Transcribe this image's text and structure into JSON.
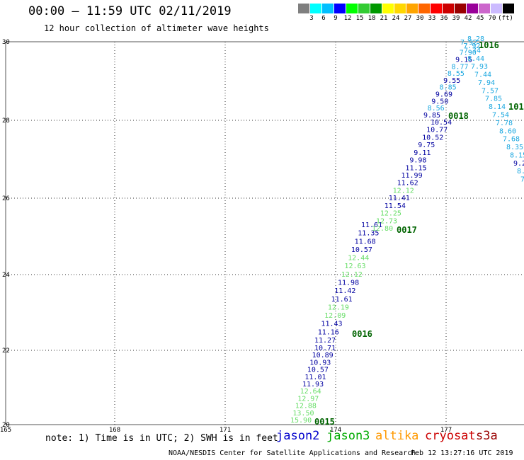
{
  "header": {
    "title": "00:00 – 11:59 UTC 02/11/2019",
    "subtitle": "12 hour collection of altimeter wave heights"
  },
  "legend": {
    "unit": "(ft)",
    "colors": [
      "#7f7f7f",
      "#00ffff",
      "#00bfff",
      "#0000ff",
      "#00ff00",
      "#33cc33",
      "#009900",
      "#ffff00",
      "#ffd700",
      "#ffa500",
      "#ff6600",
      "#ff0000",
      "#cc0000",
      "#990000",
      "#990099",
      "#cc66cc",
      "#ccbbff",
      "#000000"
    ],
    "labels": [
      "3",
      "6",
      "9",
      "12",
      "15",
      "18",
      "21",
      "24",
      "27",
      "30",
      "33",
      "36",
      "39",
      "42",
      "45",
      "70"
    ]
  },
  "axes": {
    "lon_labels": [
      "165",
      "168",
      "171",
      "174",
      "177"
    ],
    "lat_labels": [
      "30",
      "28",
      "26",
      "24",
      "22",
      "20"
    ]
  },
  "tracks": [
    {
      "label": "0015",
      "color": "#006400",
      "values": [
        {
          "v": "15.90",
          "c": "#66dd66"
        },
        {
          "v": "13.50",
          "c": "#66dd66"
        },
        {
          "v": "12.88",
          "c": "#66dd66"
        },
        {
          "v": "12.97",
          "c": "#66dd66"
        },
        {
          "v": "12.64",
          "c": "#66dd66"
        },
        {
          "v": "11.93",
          "c": "#0000a0"
        },
        {
          "v": "11.01",
          "c": "#0000a0"
        },
        {
          "v": "10.57",
          "c": "#0000a0"
        },
        {
          "v": "10.93",
          "c": "#0000a0"
        },
        {
          "v": "10.89",
          "c": "#0000a0"
        },
        {
          "v": "10.71",
          "c": "#0000a0"
        }
      ]
    },
    {
      "label": "0016",
      "color": "#006400",
      "values": [
        {
          "v": "11.27",
          "c": "#0000a0"
        },
        {
          "v": "11.16",
          "c": "#0000a0"
        },
        {
          "v": "11.43",
          "c": "#0000a0"
        },
        {
          "v": "12.09",
          "c": "#66dd66"
        },
        {
          "v": "12.19",
          "c": "#66dd66"
        },
        {
          "v": "11.61",
          "c": "#0000a0"
        },
        {
          "v": "11.42",
          "c": "#0000a0"
        },
        {
          "v": "11.98",
          "c": "#0000a0"
        },
        {
          "v": "12.12",
          "c": "#66dd66"
        },
        {
          "v": "12.63",
          "c": "#66dd66"
        },
        {
          "v": "12.44",
          "c": "#66dd66"
        },
        {
          "v": "10.57",
          "c": "#0000a0"
        },
        {
          "v": "11.68",
          "c": "#0000a0"
        },
        {
          "v": "11.35",
          "c": "#0000a0"
        },
        {
          "v": "11.61",
          "c": "#0000a0"
        }
      ]
    },
    {
      "label": "0017",
      "color": "#006400",
      "values": [
        {
          "v": "12.80",
          "c": "#66dd66"
        },
        {
          "v": "12.73",
          "c": "#66dd66"
        },
        {
          "v": "12.25",
          "c": "#66dd66"
        },
        {
          "v": "11.54",
          "c": "#0000a0"
        },
        {
          "v": "11.41",
          "c": "#0000a0"
        },
        {
          "v": "12.12",
          "c": "#66dd66"
        },
        {
          "v": "11.62",
          "c": "#0000a0"
        },
        {
          "v": "11.99",
          "c": "#0000a0"
        },
        {
          "v": "11.15",
          "c": "#0000a0"
        },
        {
          "v": "9.98",
          "c": "#0000a0"
        },
        {
          "v": "9.11",
          "c": "#0000a0"
        },
        {
          "v": "9.75",
          "c": "#0000a0"
        },
        {
          "v": "10.52",
          "c": "#0000a0"
        },
        {
          "v": "10.77",
          "c": "#0000a0"
        },
        {
          "v": "10.54",
          "c": "#0000a0"
        }
      ]
    },
    {
      "label": "0018",
      "color": "#006400",
      "values": [
        {
          "v": "9.85",
          "c": "#0000a0"
        },
        {
          "v": "8.56",
          "c": "#1ca8e0"
        },
        {
          "v": "9.50",
          "c": "#0000a0"
        },
        {
          "v": "9.69",
          "c": "#0000a0"
        },
        {
          "v": "8.85",
          "c": "#1ca8e0"
        },
        {
          "v": "9.55",
          "c": "#0000a0"
        },
        {
          "v": "8.55",
          "c": "#1ca8e0"
        },
        {
          "v": "8.77",
          "c": "#1ca8e0"
        },
        {
          "v": "9.15",
          "c": "#0000a0"
        },
        {
          "v": "7.90",
          "c": "#1ca8e0"
        },
        {
          "v": "7.92",
          "c": "#1ca8e0"
        },
        {
          "v": "8.28",
          "c": "#1ca8e0"
        }
      ]
    },
    {
      "label": "1016",
      "color": "#006400",
      "values": [
        {
          "v": "7.92",
          "c": "#1ca8e0"
        },
        {
          "v": "7.74",
          "c": "#1ca8e0"
        },
        {
          "v": "8.44",
          "c": "#1ca8e0"
        },
        {
          "v": "7.93",
          "c": "#1ca8e0"
        },
        {
          "v": "7.44",
          "c": "#1ca8e0"
        },
        {
          "v": "7.94",
          "c": "#1ca8e0"
        },
        {
          "v": "7.57",
          "c": "#1ca8e0"
        },
        {
          "v": "7.85",
          "c": "#1ca8e0"
        },
        {
          "v": "8.14",
          "c": "#1ca8e0"
        },
        {
          "v": "7.54",
          "c": "#1ca8e0"
        },
        {
          "v": "7.78",
          "c": "#1ca8e0"
        },
        {
          "v": "8.60",
          "c": "#1ca8e0"
        },
        {
          "v": "7.68",
          "c": "#1ca8e0"
        },
        {
          "v": "8.35",
          "c": "#1ca8e0"
        },
        {
          "v": "8.15",
          "c": "#1ca8e0"
        },
        {
          "v": "9.22",
          "c": "#0000a0"
        },
        {
          "v": "8.2",
          "c": "#1ca8e0"
        },
        {
          "v": "7.",
          "c": "#1ca8e0"
        },
        {
          "v": "8",
          "c": "#1ca8e0"
        }
      ]
    },
    {
      "label": "101",
      "color": "#006400",
      "values": []
    }
  ],
  "satellites": [
    {
      "name": "jason2",
      "color": "#0000cc"
    },
    {
      "name": "jason3",
      "color": "#00aa00"
    },
    {
      "name": "altika",
      "color": "#ff9900"
    },
    {
      "name": "cryosat",
      "color": "#cc0000"
    },
    {
      "name": "s3a",
      "color": "#990000"
    }
  ],
  "note": "note: 1) Time is in UTC; 2) SWH is in feet",
  "footer": "NOAA/NESDIS Center for Satellite Applications and Research",
  "timestamp": "Feb 12 13:27:16 UTC 2019"
}
